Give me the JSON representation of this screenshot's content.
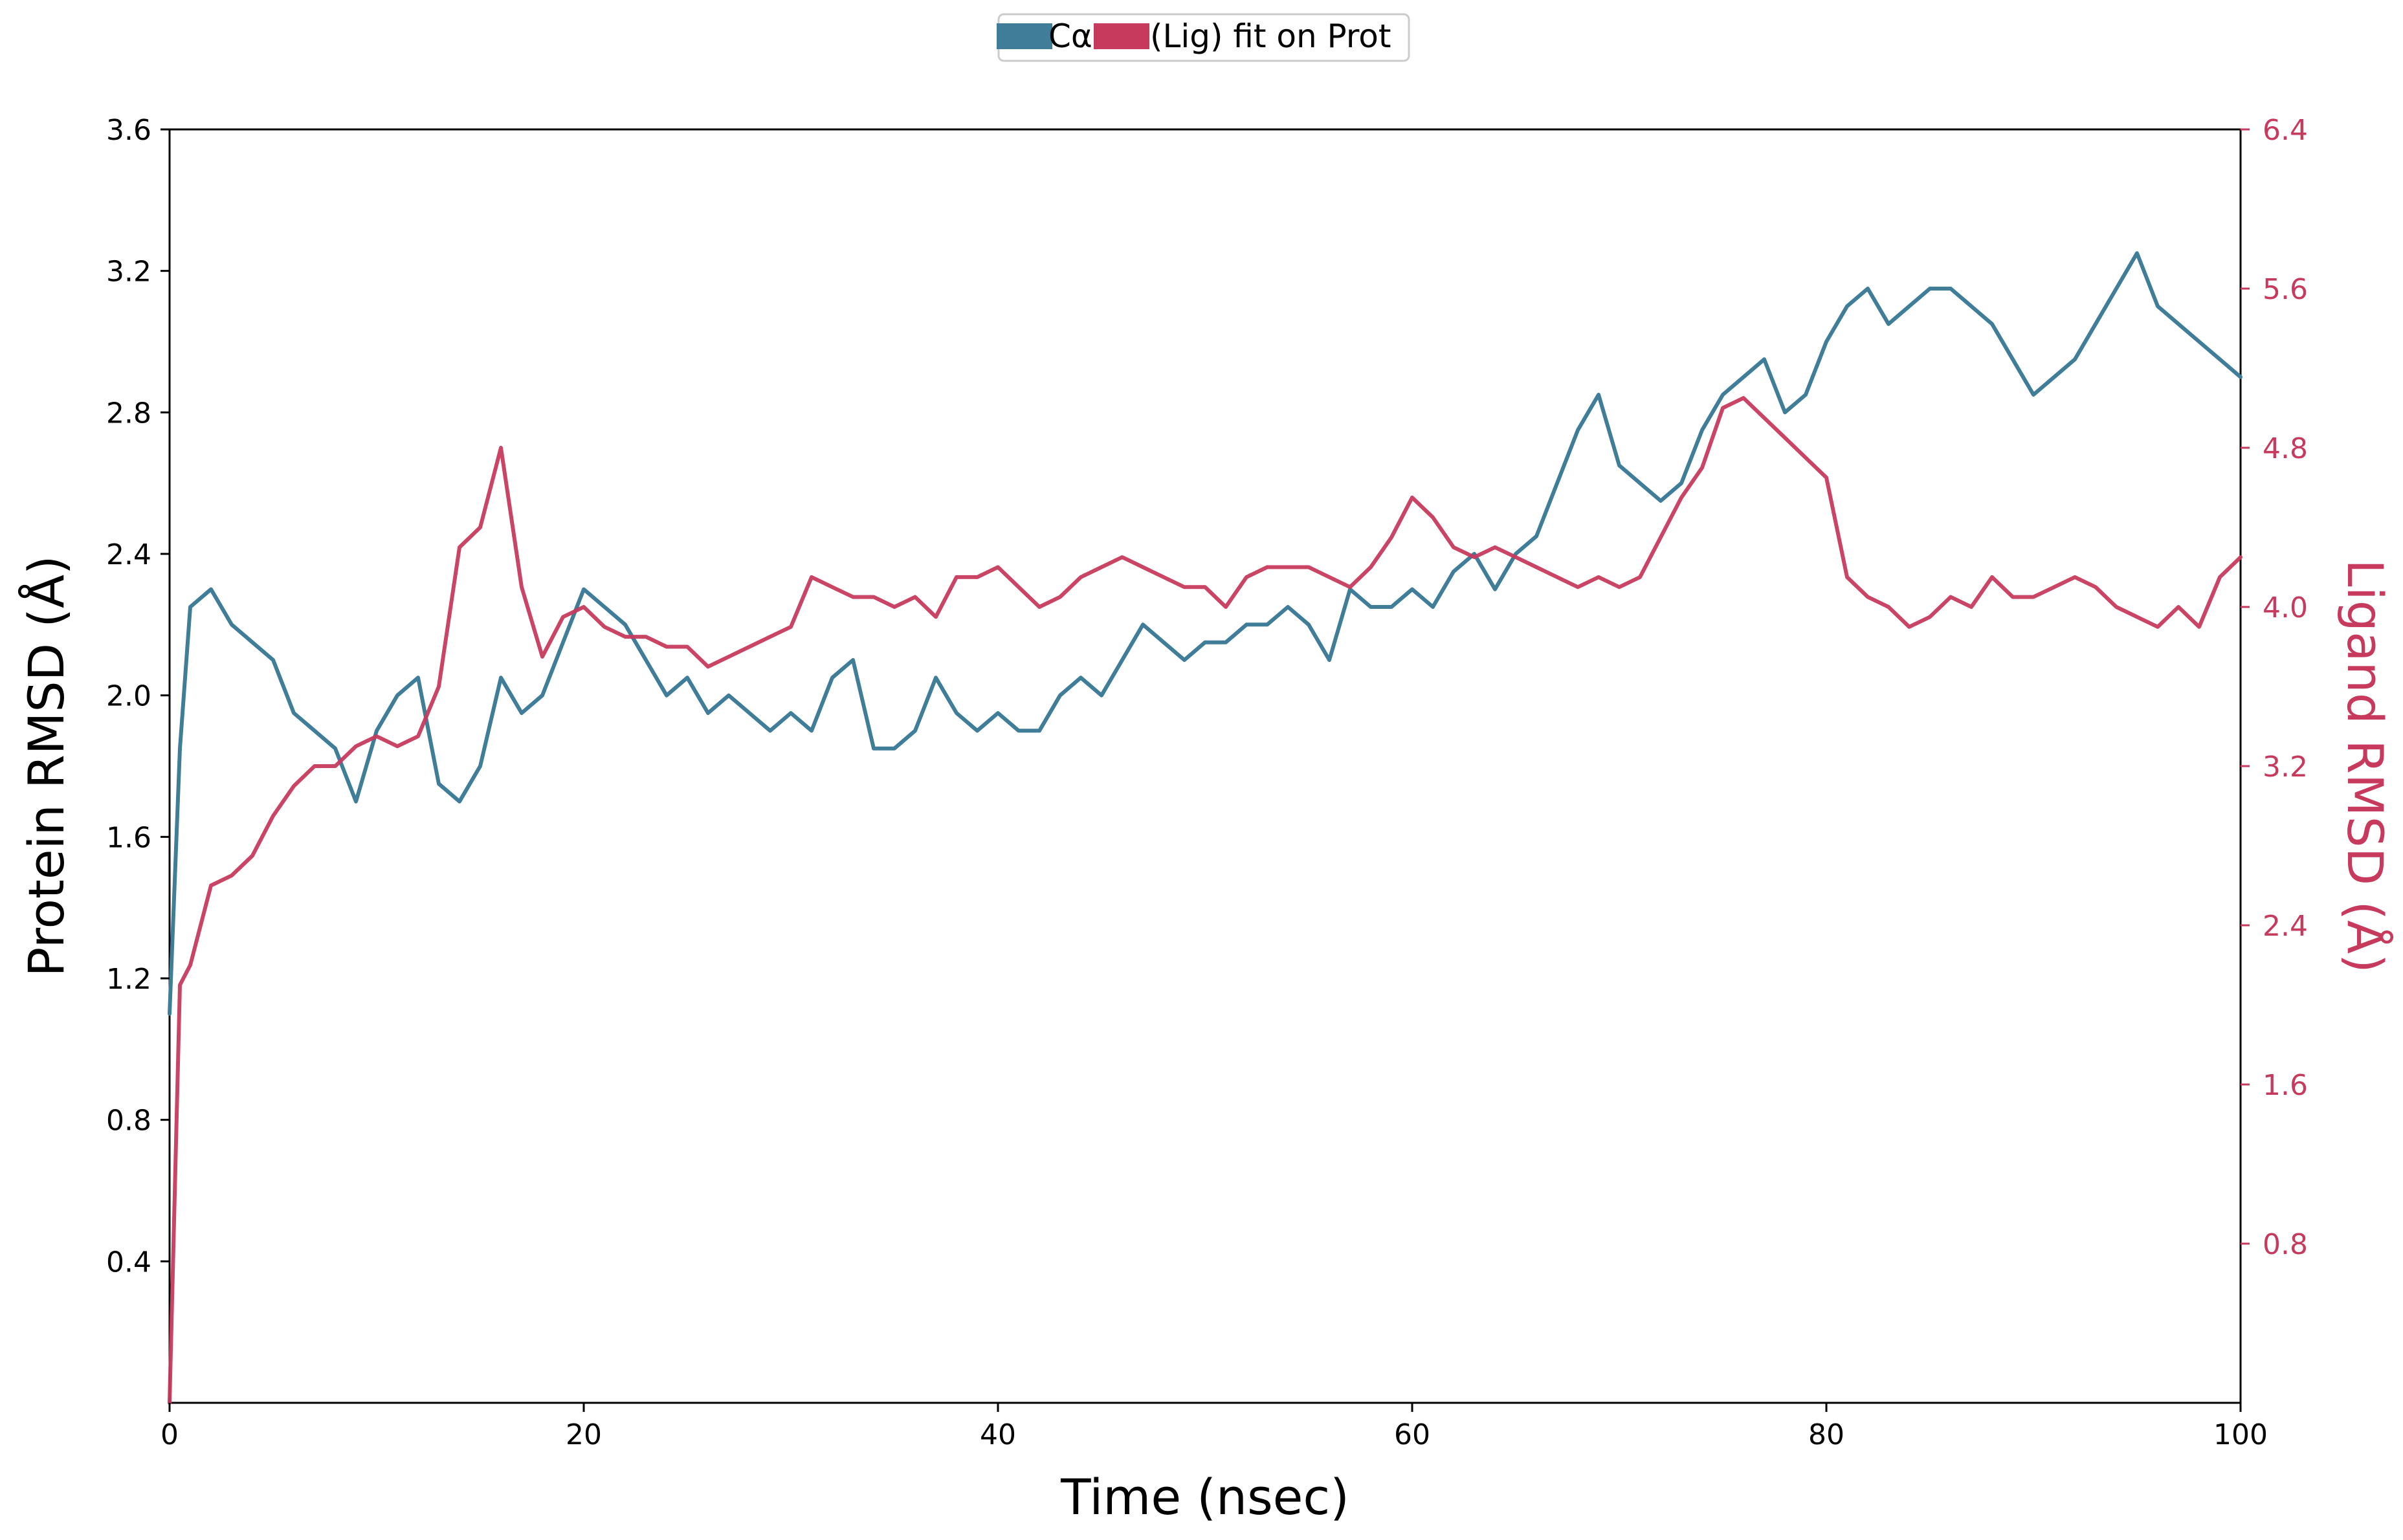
{
  "chart_data": {
    "type": "line",
    "x_axis": {
      "label": "Time (nsec)",
      "range": [
        0,
        100
      ],
      "ticks": [
        0,
        20,
        40,
        60,
        80,
        100
      ],
      "tick_labels": [
        "0",
        "20",
        "40",
        "60",
        "80",
        "100"
      ]
    },
    "y_axis_left": {
      "label": "Protein RMSD (Å)",
      "range": [
        0.0,
        3.6
      ],
      "ticks": [
        0.4,
        0.8,
        1.2,
        1.6,
        2.0,
        2.4,
        2.8,
        3.2,
        3.6
      ],
      "tick_labels": [
        "0.4",
        "0.8",
        "1.2",
        "1.6",
        "2.0",
        "2.4",
        "2.8",
        "3.2",
        "3.6"
      ]
    },
    "y_axis_right": {
      "label": "Ligand RMSD (Å)",
      "range": [
        0.0,
        6.4
      ],
      "ticks": [
        0.8,
        1.6,
        2.4,
        3.2,
        4.0,
        4.8,
        5.6,
        6.4
      ],
      "tick_labels": [
        "0.8",
        "1.6",
        "2.4",
        "3.2",
        "4.0",
        "4.8",
        "5.6",
        "6.4"
      ],
      "color": "#c73a5e"
    },
    "grid": false,
    "legend": {
      "placement": "top-center",
      "entries": [
        {
          "label": "Cα",
          "color": "#3f7d99"
        },
        {
          "label": "(Lig) fit on Prot",
          "color": "#c73a5e"
        }
      ]
    },
    "series": [
      {
        "name": "Cα",
        "axis": "left",
        "color": "#3f7d99",
        "x": [
          0,
          0.5,
          1,
          2,
          3,
          4,
          5,
          6,
          7,
          8,
          9,
          10,
          11,
          12,
          13,
          14,
          15,
          16,
          17,
          18,
          19,
          20,
          21,
          22,
          23,
          24,
          25,
          26,
          27,
          28,
          29,
          30,
          31,
          32,
          33,
          34,
          35,
          36,
          37,
          38,
          39,
          40,
          41,
          42,
          43,
          44,
          45,
          46,
          47,
          48,
          49,
          50,
          51,
          52,
          53,
          54,
          55,
          56,
          57,
          58,
          59,
          60,
          61,
          62,
          63,
          64,
          65,
          66,
          67,
          68,
          69,
          70,
          71,
          72,
          73,
          74,
          75,
          76,
          77,
          78,
          79,
          80,
          81,
          82,
          83,
          84,
          85,
          86,
          87,
          88,
          89,
          90,
          91,
          92,
          93,
          94,
          95,
          96,
          97,
          98,
          99,
          100
        ],
        "values": [
          1.1,
          1.85,
          2.25,
          2.3,
          2.2,
          2.15,
          2.1,
          1.95,
          1.9,
          1.85,
          1.7,
          1.9,
          2.0,
          2.05,
          1.75,
          1.7,
          1.8,
          2.05,
          1.95,
          2.0,
          2.15,
          2.3,
          2.25,
          2.2,
          2.1,
          2.0,
          2.05,
          1.95,
          2.0,
          1.95,
          1.9,
          1.95,
          1.9,
          2.05,
          2.1,
          1.85,
          1.85,
          1.9,
          2.05,
          1.95,
          1.9,
          1.95,
          1.9,
          1.9,
          2.0,
          2.05,
          2.0,
          2.1,
          2.2,
          2.15,
          2.1,
          2.15,
          2.15,
          2.2,
          2.2,
          2.25,
          2.2,
          2.1,
          2.3,
          2.25,
          2.25,
          2.3,
          2.25,
          2.35,
          2.4,
          2.3,
          2.4,
          2.45,
          2.6,
          2.75,
          2.85,
          2.65,
          2.6,
          2.55,
          2.6,
          2.75,
          2.85,
          2.9,
          2.95,
          2.8,
          2.85,
          3.0,
          3.1,
          3.15,
          3.05,
          3.1,
          3.15,
          3.15,
          3.1,
          3.05,
          2.95,
          2.85,
          2.9,
          2.95,
          3.05,
          3.15,
          3.25,
          3.1,
          3.05,
          3.0,
          2.95,
          2.9
        ]
      },
      {
        "name": "(Lig) fit on Prot",
        "axis": "right",
        "color": "#c73a5e",
        "x": [
          0,
          0.5,
          1,
          2,
          3,
          4,
          5,
          6,
          7,
          8,
          9,
          10,
          11,
          12,
          13,
          14,
          15,
          16,
          17,
          18,
          19,
          20,
          21,
          22,
          23,
          24,
          25,
          26,
          27,
          28,
          29,
          30,
          31,
          32,
          33,
          34,
          35,
          36,
          37,
          38,
          39,
          40,
          41,
          42,
          43,
          44,
          45,
          46,
          47,
          48,
          49,
          50,
          51,
          52,
          53,
          54,
          55,
          56,
          57,
          58,
          59,
          60,
          61,
          62,
          63,
          64,
          65,
          66,
          67,
          68,
          69,
          70,
          71,
          72,
          73,
          74,
          75,
          76,
          77,
          78,
          79,
          80,
          81,
          82,
          83,
          84,
          85,
          86,
          87,
          88,
          89,
          90,
          91,
          92,
          93,
          94,
          95,
          96,
          97,
          98,
          99,
          100
        ],
        "values": [
          0.0,
          2.1,
          2.2,
          2.6,
          2.65,
          2.75,
          2.95,
          3.1,
          3.2,
          3.2,
          3.3,
          3.35,
          3.3,
          3.35,
          3.6,
          4.3,
          4.4,
          4.8,
          4.1,
          3.75,
          3.95,
          4.0,
          3.9,
          3.85,
          3.85,
          3.8,
          3.8,
          3.7,
          3.75,
          3.8,
          3.85,
          3.9,
          4.15,
          4.1,
          4.05,
          4.05,
          4.0,
          4.05,
          3.95,
          4.15,
          4.15,
          4.2,
          4.1,
          4.0,
          4.05,
          4.15,
          4.2,
          4.25,
          4.2,
          4.15,
          4.1,
          4.1,
          4.0,
          4.15,
          4.2,
          4.2,
          4.2,
          4.15,
          4.1,
          4.2,
          4.35,
          4.55,
          4.45,
          4.3,
          4.25,
          4.3,
          4.25,
          4.2,
          4.15,
          4.1,
          4.15,
          4.1,
          4.15,
          4.35,
          4.55,
          4.7,
          5.0,
          5.05,
          4.95,
          4.85,
          4.75,
          4.65,
          4.15,
          4.05,
          4.0,
          3.9,
          3.95,
          4.05,
          4.0,
          4.15,
          4.05,
          4.05,
          4.1,
          4.15,
          4.1,
          4.0,
          3.95,
          3.9,
          4.0,
          3.9,
          4.15,
          4.25
        ]
      }
    ]
  }
}
